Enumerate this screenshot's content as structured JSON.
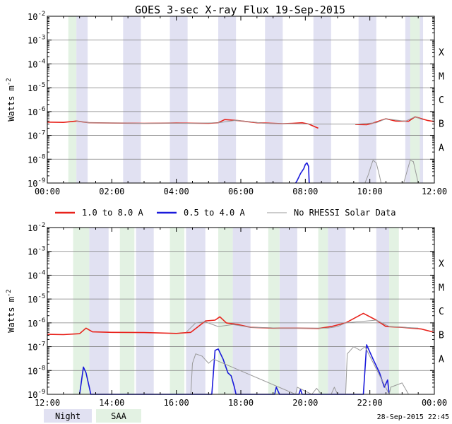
{
  "chart_data": [
    {
      "type": "line",
      "title": "GOES 3-sec X-ray Flux   19-Sep-2015",
      "ylabel": "Watts m",
      "ylabel_sup": "-2",
      "yscale": "log",
      "ylim": [
        1e-09,
        0.01
      ],
      "xlim": [
        0,
        12
      ],
      "x_ticks": [
        "00:00",
        "02:00",
        "04:00",
        "06:00",
        "08:00",
        "10:00",
        "12:00"
      ],
      "y_ticks": [
        {
          "base": "10",
          "exp": "-2"
        },
        {
          "base": "10",
          "exp": "-3"
        },
        {
          "base": "10",
          "exp": "-4"
        },
        {
          "base": "10",
          "exp": "-5"
        },
        {
          "base": "10",
          "exp": "-6"
        },
        {
          "base": "10",
          "exp": "-7"
        },
        {
          "base": "10",
          "exp": "-8"
        },
        {
          "base": "10",
          "exp": "-9"
        }
      ],
      "flare_classes": [
        "X",
        "M",
        "C",
        "B",
        "A"
      ],
      "night_bands": [
        [
          0.9,
          1.25
        ],
        [
          2.35,
          2.9
        ],
        [
          3.8,
          4.35
        ],
        [
          5.3,
          5.85
        ],
        [
          6.75,
          7.3
        ],
        [
          8.25,
          8.8
        ],
        [
          9.65,
          10.2
        ],
        [
          11.1,
          11.65
        ]
      ],
      "saa_bands": [
        [
          0.65,
          0.9
        ],
        [
          11.25,
          11.55
        ]
      ],
      "series": [
        {
          "label": "1.0 to 8.0 A",
          "color": "#e8221b",
          "values": [
            [
              0,
              3.6e-07
            ],
            [
              0.5,
              3.5e-07
            ],
            [
              0.9,
              4e-07
            ],
            [
              1.3,
              3.4e-07
            ],
            [
              2.0,
              3.3e-07
            ],
            [
              3.0,
              3.2e-07
            ],
            [
              4.0,
              3.3e-07
            ],
            [
              5.0,
              3.2e-07
            ],
            [
              5.3,
              3.4e-07
            ],
            [
              5.5,
              4.6e-07
            ],
            [
              5.9,
              4.2e-07
            ],
            [
              6.5,
              3.4e-07
            ],
            [
              7.3,
              3.1e-07
            ],
            [
              7.6,
              3.2e-07
            ],
            [
              7.9,
              3.4e-07
            ],
            [
              8.1,
              3e-07
            ],
            [
              8.4,
              2e-07
            ]
          ]
        },
        {
          "label": "1.0 to 8.0 A",
          "color": "#e8221b",
          "values": [
            [
              9.55,
              2.9e-07
            ],
            [
              9.9,
              2.8e-07
            ],
            [
              10.1,
              3.3e-07
            ],
            [
              10.5,
              5e-07
            ],
            [
              10.8,
              4e-07
            ],
            [
              11.2,
              3.9e-07
            ],
            [
              11.4,
              6e-07
            ],
            [
              11.8,
              4.2e-07
            ],
            [
              12,
              3.8e-07
            ]
          ]
        },
        {
          "label": "1.0 to 8.0 A",
          "color": "#999999",
          "values": [
            [
              0.9,
              4e-07
            ],
            [
              1.3,
              3.4e-07
            ],
            [
              2.3,
              3.3e-07
            ],
            [
              2.9,
              3.2e-07
            ],
            [
              3.8,
              3.3e-07
            ],
            [
              4.35,
              3.2e-07
            ],
            [
              5.3,
              3.4e-07
            ],
            [
              5.85,
              4.3e-07
            ],
            [
              6.75,
              3.2e-07
            ],
            [
              7.3,
              3.1e-07
            ],
            [
              8.25,
              3e-07
            ],
            [
              9.65,
              3e-07
            ],
            [
              10.2,
              3.4e-07
            ],
            [
              10.5,
              5e-07
            ],
            [
              11.1,
              3.9e-07
            ],
            [
              11.4,
              6e-07
            ],
            [
              11.65,
              4.5e-07
            ]
          ]
        },
        {
          "label": "0.5 to 4.0 A",
          "color": "#1a1adb",
          "values": [
            [
              7.7,
              1e-09
            ],
            [
              7.75,
              1.3e-09
            ],
            [
              7.85,
              2.5e-09
            ],
            [
              7.95,
              4e-09
            ],
            [
              8.0,
              6e-09
            ],
            [
              8.05,
              7e-09
            ],
            [
              8.1,
              5e-09
            ],
            [
              8.12,
              1e-09
            ]
          ]
        },
        {
          "label": "0.5 to 4.0 A",
          "color": "#999999",
          "values": [
            [
              9.85,
              1e-09
            ],
            [
              9.95,
              2.2e-09
            ],
            [
              10.05,
              6e-09
            ],
            [
              10.1,
              9e-09
            ],
            [
              10.2,
              7e-09
            ],
            [
              10.3,
              2e-09
            ],
            [
              10.35,
              1e-09
            ],
            [
              11.05,
              1e-09
            ],
            [
              11.15,
              3e-09
            ],
            [
              11.25,
              9e-09
            ],
            [
              11.35,
              8e-09
            ],
            [
              11.45,
              2e-09
            ],
            [
              11.5,
              1e-09
            ]
          ]
        }
      ]
    },
    {
      "type": "line",
      "ylabel": "Watts m",
      "ylabel_sup": "-2",
      "yscale": "log",
      "ylim": [
        1e-09,
        0.01
      ],
      "xlim": [
        12,
        24
      ],
      "x_ticks": [
        "12:00",
        "14:00",
        "16:00",
        "18:00",
        "20:00",
        "22:00",
        "00:00"
      ],
      "y_ticks": [
        {
          "base": "10",
          "exp": "-2"
        },
        {
          "base": "10",
          "exp": "-3"
        },
        {
          "base": "10",
          "exp": "-4"
        },
        {
          "base": "10",
          "exp": "-5"
        },
        {
          "base": "10",
          "exp": "-6"
        },
        {
          "base": "10",
          "exp": "-7"
        },
        {
          "base": "10",
          "exp": "-8"
        },
        {
          "base": "10",
          "exp": "-9"
        }
      ],
      "flare_classes": [
        "X",
        "M",
        "C",
        "B",
        "A"
      ],
      "night_bands": [
        [
          13.3,
          13.9
        ],
        [
          14.75,
          15.3
        ],
        [
          16.3,
          16.9
        ],
        [
          17.75,
          18.3
        ],
        [
          19.2,
          19.75
        ],
        [
          20.7,
          21.25
        ],
        [
          22.2,
          22.6
        ]
      ],
      "saa_bands": [
        [
          12.8,
          13.3
        ],
        [
          14.25,
          14.7
        ],
        [
          15.8,
          16.25
        ],
        [
          17.3,
          17.75
        ],
        [
          18.85,
          19.2
        ],
        [
          20.4,
          20.7
        ],
        [
          22.6,
          22.9
        ]
      ],
      "series": [
        {
          "label": "1.0 to 8.0 A",
          "color": "#e8221b",
          "values": [
            [
              12,
              3.3e-07
            ],
            [
              12.5,
              3.2e-07
            ],
            [
              13.0,
              3.5e-07
            ],
            [
              13.2,
              6e-07
            ],
            [
              13.4,
              4.2e-07
            ],
            [
              14.0,
              4e-07
            ],
            [
              15.0,
              3.9e-07
            ],
            [
              16.0,
              3.6e-07
            ],
            [
              16.45,
              4e-07
            ],
            [
              16.9,
              1.2e-06
            ],
            [
              17.2,
              1.3e-06
            ],
            [
              17.35,
              1.8e-06
            ],
            [
              17.55,
              1e-06
            ],
            [
              17.9,
              8.5e-07
            ],
            [
              18.3,
              6.5e-07
            ],
            [
              19.0,
              6e-07
            ],
            [
              19.75,
              6e-07
            ],
            [
              20.4,
              5.8e-07
            ],
            [
              20.8,
              7e-07
            ],
            [
              21.25,
              1e-06
            ],
            [
              21.6,
              1.8e-06
            ],
            [
              21.8,
              2.5e-06
            ],
            [
              22.2,
              1.3e-06
            ],
            [
              22.5,
              7e-07
            ],
            [
              23.0,
              6.5e-07
            ],
            [
              23.6,
              5.5e-07
            ],
            [
              24,
              4e-07
            ]
          ]
        },
        {
          "label": "1.0 to 8.0 A",
          "color": "#999999",
          "values": [
            [
              16.3,
              4e-07
            ],
            [
              16.6,
              1e-06
            ],
            [
              16.9,
              1.1e-06
            ],
            [
              17.3,
              7e-07
            ],
            [
              17.75,
              8.5e-07
            ],
            [
              18.3,
              6.5e-07
            ],
            [
              19.2,
              6e-07
            ],
            [
              19.75,
              6e-07
            ],
            [
              20.7,
              6e-07
            ],
            [
              21.0,
              7e-07
            ],
            [
              21.25,
              1e-06
            ],
            [
              22.2,
              1.3e-06
            ],
            [
              22.6,
              7e-07
            ],
            [
              23.5,
              6e-07
            ]
          ]
        },
        {
          "label": "0.5 to 4.0 A",
          "color": "#1a1adb",
          "values": [
            [
              13.0,
              1e-09
            ],
            [
              13.05,
              3e-09
            ],
            [
              13.12,
              1.4e-08
            ],
            [
              13.2,
              8e-09
            ],
            [
              13.3,
              2e-09
            ],
            [
              13.35,
              1e-09
            ],
            [
              17.1,
              1e-09
            ],
            [
              17.2,
              7e-08
            ],
            [
              17.3,
              8e-08
            ],
            [
              17.45,
              3e-08
            ],
            [
              17.6,
              8e-09
            ],
            [
              17.7,
              6e-09
            ],
            [
              17.8,
              2e-09
            ],
            [
              17.85,
              1e-09
            ],
            [
              19.05,
              1e-09
            ],
            [
              19.1,
              2e-09
            ],
            [
              19.2,
              1e-09
            ],
            [
              19.8,
              1e-09
            ],
            [
              19.85,
              1.6e-09
            ],
            [
              19.9,
              1e-09
            ],
            [
              21.8,
              1e-09
            ],
            [
              21.9,
              1.2e-07
            ],
            [
              22.1,
              3e-08
            ],
            [
              22.3,
              8e-09
            ],
            [
              22.45,
              2e-09
            ],
            [
              22.55,
              4e-09
            ],
            [
              22.6,
              1e-09
            ]
          ]
        },
        {
          "label": "0.5 to 4.0 A",
          "color": "#999999",
          "values": [
            [
              16.45,
              1e-09
            ],
            [
              16.5,
              2e-08
            ],
            [
              16.6,
              5e-08
            ],
            [
              16.8,
              4e-08
            ],
            [
              17.0,
              2e-08
            ],
            [
              17.15,
              3e-08
            ],
            [
              19.7,
              1e-09
            ],
            [
              19.75,
              2e-09
            ],
            [
              20.2,
              1e-09
            ],
            [
              20.35,
              1.8e-09
            ],
            [
              20.5,
              1e-09
            ],
            [
              20.8,
              1e-09
            ],
            [
              20.9,
              2e-09
            ],
            [
              21.0,
              1e-09
            ],
            [
              21.25,
              1e-09
            ],
            [
              21.3,
              5e-08
            ],
            [
              21.5,
              1e-07
            ],
            [
              21.7,
              7e-08
            ],
            [
              21.85,
              1e-07
            ],
            [
              22.6,
              1e-09
            ],
            [
              22.65,
              2e-09
            ],
            [
              23.0,
              3e-09
            ],
            [
              23.2,
              1e-09
            ]
          ]
        }
      ]
    }
  ],
  "legend": {
    "items": [
      {
        "label": "1.0 to 8.0 A",
        "color": "#e8221b"
      },
      {
        "label": "0.5 to 4.0 A",
        "color": "#1a1adb"
      },
      {
        "label": "No RHESSI Solar Data",
        "color": "#999999"
      }
    ],
    "night_label": "Night",
    "saa_label": "SAA",
    "night_color": "#e1e1f2",
    "saa_color": "#e3f2e3"
  },
  "timestamp": "28-Sep-2015 22:45"
}
